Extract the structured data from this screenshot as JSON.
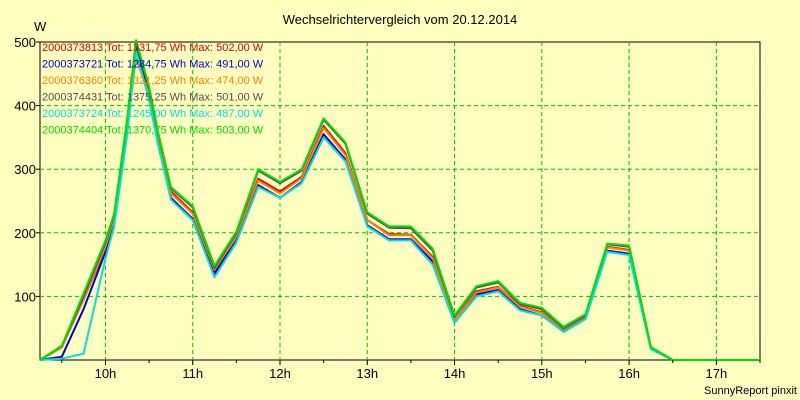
{
  "chart_data": {
    "type": "line",
    "title": "Wechselrichtervergleich vom 20.12.2014",
    "ylabel": "W",
    "xlabel": "",
    "footer": "SunnyReport pinxit",
    "ylim": [
      0,
      500
    ],
    "xlim": [
      9.25,
      17.5
    ],
    "yticks": [
      100,
      200,
      300,
      400,
      500
    ],
    "xticks": [
      {
        "value": 10,
        "label": "10h"
      },
      {
        "value": 11,
        "label": "11h"
      },
      {
        "value": 12,
        "label": "12h"
      },
      {
        "value": 13,
        "label": "13h"
      },
      {
        "value": 14,
        "label": "14h"
      },
      {
        "value": 15,
        "label": "15h"
      },
      {
        "value": 16,
        "label": "16h"
      },
      {
        "value": 17,
        "label": "17h"
      }
    ],
    "grid": true,
    "legend_position": "top-left",
    "x": [
      9.25,
      9.5,
      9.75,
      10.0,
      10.1,
      10.25,
      10.35,
      10.5,
      10.6,
      10.75,
      11.0,
      11.25,
      11.5,
      11.75,
      12.0,
      12.25,
      12.5,
      12.75,
      13.0,
      13.25,
      13.5,
      13.75,
      14.0,
      14.25,
      14.5,
      14.75,
      15.0,
      15.25,
      15.5,
      15.75,
      16.0,
      16.25,
      16.5,
      16.75,
      17.0,
      17.25,
      17.5
    ],
    "series": [
      {
        "name": "2000373813",
        "legend": "2000373813 Tot: 1331,75 Wh Max: 502,00 W",
        "color": "#e00000",
        "values": [
          0,
          20,
          95,
          175,
          220,
          370,
          500,
          420,
          350,
          265,
          232,
          140,
          195,
          285,
          265,
          288,
          368,
          325,
          220,
          198,
          197,
          162,
          62,
          108,
          115,
          85,
          75,
          48,
          68,
          178,
          173,
          18,
          0,
          0,
          0,
          0,
          0
        ]
      },
      {
        "name": "2000373721",
        "legend": "2000373721 Tot: 1284,75 Wh Max: 491,00 W",
        "color": "#0000d0",
        "values": [
          0,
          5,
          80,
          170,
          215,
          360,
          491,
          412,
          345,
          255,
          222,
          135,
          188,
          275,
          255,
          280,
          355,
          315,
          212,
          190,
          190,
          155,
          60,
          103,
          110,
          80,
          70,
          45,
          65,
          172,
          167,
          18,
          0,
          0,
          0,
          0,
          0
        ]
      },
      {
        "name": "2000376360",
        "legend": "2000376360 Tot: 1321,25 Wh Max: 474,00 W",
        "color": "#ff8000",
        "values": [
          0,
          20,
          95,
          178,
          222,
          368,
          474,
          418,
          348,
          262,
          230,
          142,
          195,
          282,
          262,
          286,
          365,
          322,
          220,
          196,
          196,
          160,
          62,
          106,
          114,
          84,
          74,
          48,
          68,
          177,
          172,
          18,
          0,
          0,
          0,
          0,
          0
        ]
      },
      {
        "name": "2000374431",
        "legend": "2000374431 Tot: 1375,25 Wh Max: 501,00 W",
        "color": "#505050",
        "values": [
          0,
          22,
          100,
          185,
          228,
          378,
          501,
          428,
          358,
          270,
          240,
          145,
          200,
          298,
          278,
          298,
          378,
          340,
          230,
          208,
          207,
          172,
          68,
          114,
          122,
          88,
          80,
          50,
          70,
          182,
          178,
          20,
          0,
          0,
          0,
          0,
          0
        ]
      },
      {
        "name": "2000373724",
        "legend": "2000373724 Tot: 1245,00 Wh Max: 487,00 W",
        "color": "#00e0e0",
        "values": [
          0,
          2,
          10,
          160,
          210,
          355,
          487,
          408,
          340,
          252,
          220,
          130,
          185,
          272,
          255,
          278,
          350,
          312,
          210,
          188,
          188,
          150,
          58,
          100,
          108,
          78,
          70,
          44,
          64,
          170,
          165,
          17,
          0,
          0,
          0,
          0,
          0
        ]
      },
      {
        "name": "2000374404",
        "legend": "2000374404 Tot: 1370,75 Wh Max: 503,00 W",
        "color": "#00e000",
        "values": [
          0,
          22,
          105,
          188,
          230,
          380,
          503,
          430,
          360,
          272,
          242,
          148,
          202,
          300,
          280,
          300,
          380,
          342,
          232,
          210,
          210,
          175,
          70,
          116,
          124,
          90,
          82,
          52,
          72,
          183,
          180,
          20,
          0,
          0,
          0,
          0,
          0
        ]
      }
    ]
  }
}
